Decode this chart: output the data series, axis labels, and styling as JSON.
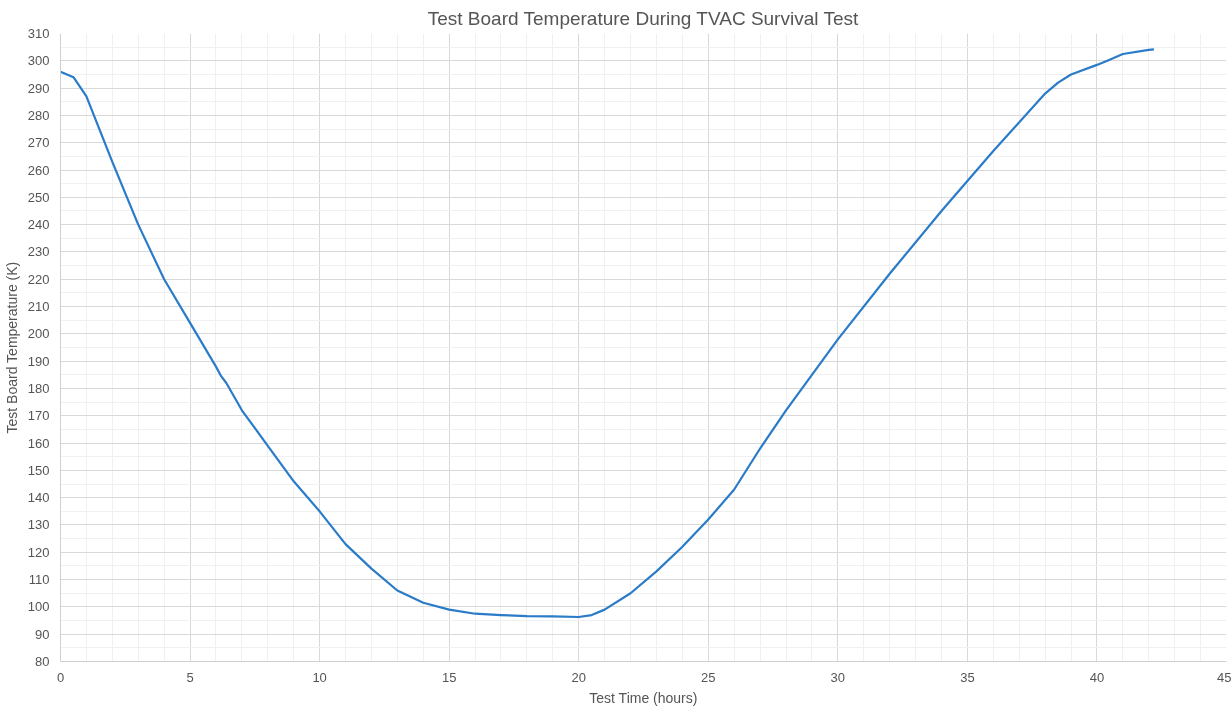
{
  "chart_data": {
    "type": "line",
    "title": "Test Board Temperature During TVAC Survival Test",
    "xlabel": "Test Time (hours)",
    "ylabel": "Test Board Temperature (K)",
    "x": [
      0,
      0.5,
      1,
      2,
      3,
      4,
      5,
      6,
      6.2,
      6.4,
      7,
      8,
      9,
      10,
      11,
      12,
      13,
      14,
      15,
      16,
      17,
      18,
      19,
      20,
      20.5,
      21,
      22,
      23,
      24,
      25,
      26,
      27,
      28,
      29,
      30,
      32,
      34,
      36,
      38,
      38.5,
      39,
      40,
      40.4,
      41,
      42,
      42.2
    ],
    "series": [
      {
        "color": "#2a7bc8",
        "values": [
          296,
          294,
          287,
          263,
          240,
          220,
          204,
          188,
          184.5,
          182,
          172,
          159,
          146,
          135,
          123,
          114,
          106,
          101.5,
          99,
          97.5,
          97,
          96.6,
          96.5,
          96.3,
          97,
          99,
          105,
          113,
          122,
          132,
          143,
          158,
          172,
          185,
          198,
          222,
          245,
          267,
          288,
          292,
          295,
          298.5,
          300,
          302.5,
          304,
          304.2
        ]
      }
    ],
    "xlim": [
      0,
      45
    ],
    "xticks": [
      0,
      5,
      10,
      15,
      20,
      25,
      30,
      35,
      40,
      45
    ],
    "ylim": [
      80,
      310
    ],
    "yticks": [
      80,
      90,
      100,
      110,
      120,
      130,
      140,
      150,
      160,
      170,
      180,
      190,
      200,
      210,
      220,
      230,
      240,
      250,
      260,
      270,
      280,
      290,
      300,
      310
    ],
    "grid": true,
    "marker": "none",
    "line_style": "solid"
  }
}
